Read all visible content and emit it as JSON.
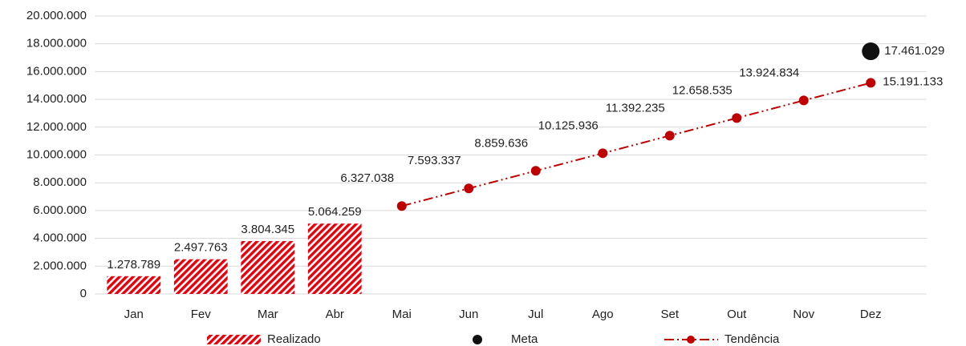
{
  "chart_data": {
    "type": "combo",
    "categories": [
      "Jan",
      "Fev",
      "Mar",
      "Abr",
      "Mai",
      "Jun",
      "Jul",
      "Ago",
      "Set",
      "Out",
      "Nov",
      "Dez"
    ],
    "series": [
      {
        "name": "Realizado",
        "type": "bar",
        "color": "#e8000b",
        "values": [
          1278789,
          2497763,
          3804345,
          5064259,
          null,
          null,
          null,
          null,
          null,
          null,
          null,
          null
        ],
        "value_labels": [
          "1.278.789",
          "2.497.763",
          "3.804.345",
          "5.064.259",
          null,
          null,
          null,
          null,
          null,
          null,
          null,
          null
        ]
      },
      {
        "name": "Meta",
        "type": "scatter",
        "color": "#111111",
        "values": [
          null,
          null,
          null,
          null,
          null,
          null,
          null,
          null,
          null,
          null,
          null,
          17461029
        ],
        "value_labels": [
          null,
          null,
          null,
          null,
          null,
          null,
          null,
          null,
          null,
          null,
          null,
          "17.461.029"
        ]
      },
      {
        "name": "Tendência",
        "type": "line",
        "color": "#c00000",
        "values": [
          null,
          null,
          null,
          null,
          6327038,
          7593337,
          8859636,
          10125936,
          11392235,
          12658535,
          13924834,
          15191133
        ],
        "value_labels": [
          null,
          null,
          null,
          null,
          "6.327.038",
          "7.593.337",
          "8.859.636",
          "10.125.936",
          "11.392.235",
          "12.658.535",
          "13.924.834",
          "15.191.133"
        ]
      }
    ],
    "ylim": [
      0,
      20000000
    ],
    "yticks": [
      0,
      {
        "value": 2000000,
        "label": "2.000.000"
      },
      {
        "value": 4000000,
        "label": "4.000.000"
      },
      {
        "value": 6000000,
        "label": "6.000.000"
      },
      {
        "value": 8000000,
        "label": "8.000.000"
      },
      {
        "value": 10000000,
        "label": "10.000.000"
      },
      {
        "value": 12000000,
        "label": "12.000.000"
      },
      {
        "value": 14000000,
        "label": "14.000.000"
      },
      {
        "value": 16000000,
        "label": "16.000.000"
      },
      {
        "value": 18000000,
        "label": "18.000.000"
      },
      {
        "value": 20000000,
        "label": "20.000.000"
      }
    ],
    "grid": true
  }
}
